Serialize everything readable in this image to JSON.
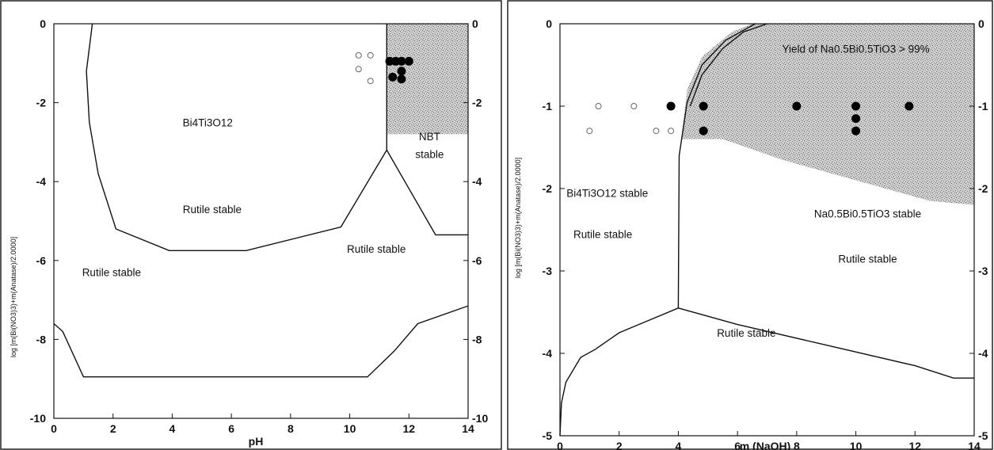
{
  "chart_data": [
    {
      "type": "line",
      "subtype": "phase-stability-diagram",
      "title": "",
      "xlabel": "pH",
      "ylabel": "log [m(Bi(NO3)3)+m(Anatase)/2.0000]",
      "xlim": [
        0,
        14
      ],
      "ylim": [
        -10,
        0
      ],
      "x_ticks": [
        0,
        2,
        4,
        6,
        8,
        10,
        12,
        14
      ],
      "y_ticks_left": [
        0,
        -2,
        -4,
        -6,
        -8,
        -10
      ],
      "y_ticks_right": [
        0,
        -2,
        -4,
        -6,
        -8,
        -10
      ],
      "grid": false,
      "shaded_regions": [
        {
          "polygon": [
            [
              11.25,
              0
            ],
            [
              14,
              0
            ],
            [
              14,
              -2.8
            ],
            [
              11.25,
              -2.8
            ]
          ]
        }
      ],
      "boundaries": [
        {
          "points": [
            [
              1.3,
              0
            ],
            [
              1.1,
              -1.2
            ],
            [
              1.2,
              -2.5
            ],
            [
              1.5,
              -3.8
            ],
            [
              2.1,
              -5.2
            ]
          ]
        },
        {
          "points": [
            [
              2.1,
              -5.2
            ],
            [
              3.9,
              -5.75
            ],
            [
              6.5,
              -5.75
            ],
            [
              9.7,
              -5.15
            ],
            [
              11.25,
              -3.2
            ]
          ]
        },
        {
          "points": [
            [
              11.25,
              0
            ],
            [
              11.25,
              -3.2
            ]
          ]
        },
        {
          "points": [
            [
              11.25,
              -3.2
            ],
            [
              12.9,
              -5.35
            ],
            [
              14,
              -5.35
            ]
          ]
        },
        {
          "points": [
            [
              0,
              -7.6
            ],
            [
              0.3,
              -7.8
            ],
            [
              1,
              -8.95
            ],
            [
              10.6,
              -8.95
            ],
            [
              11.5,
              -8.3
            ],
            [
              12.3,
              -7.6
            ],
            [
              14,
              -7.15
            ]
          ]
        }
      ],
      "data_points": [
        {
          "x": 11.35,
          "y": -0.95,
          "filled": true
        },
        {
          "x": 11.55,
          "y": -0.95,
          "filled": true
        },
        {
          "x": 11.75,
          "y": -0.95,
          "filled": true
        },
        {
          "x": 12.0,
          "y": -0.95,
          "filled": true
        },
        {
          "x": 11.45,
          "y": -1.35,
          "filled": true
        },
        {
          "x": 11.75,
          "y": -1.2,
          "filled": true
        },
        {
          "x": 11.75,
          "y": -1.4,
          "filled": true
        },
        {
          "x": 10.3,
          "y": -0.8,
          "filled": false
        },
        {
          "x": 10.7,
          "y": -0.8,
          "filled": false
        },
        {
          "x": 10.3,
          "y": -1.15,
          "filled": false
        },
        {
          "x": 10.7,
          "y": -1.45,
          "filled": false
        }
      ],
      "annotations": [
        {
          "text": "Bi4Ti3O12",
          "x": 5.2,
          "y": -2.6
        },
        {
          "text": "NBT",
          "x": 12.7,
          "y": -2.95
        },
        {
          "text": "stable",
          "x": 12.7,
          "y": -3.4
        },
        {
          "text": "Rutile stable",
          "x": 5.35,
          "y": -4.8
        },
        {
          "text": "Rutile stable",
          "x": 10.9,
          "y": -5.8
        },
        {
          "text": "Rutile stable",
          "x": 1.95,
          "y": -6.4
        }
      ]
    },
    {
      "type": "line",
      "subtype": "phase-stability-diagram",
      "title": "",
      "xlabel": "m (NaOH)",
      "ylabel": "log [m(Bi(NO3)3)+m(Anatase)/2.0000]",
      "xlim": [
        0,
        14
      ],
      "ylim": [
        -5,
        0
      ],
      "x_ticks": [
        0,
        2,
        4,
        6,
        8,
        10,
        12,
        14
      ],
      "y_ticks_left": [
        0,
        -1,
        -2,
        -3,
        -4,
        -5
      ],
      "y_ticks_right": [
        0,
        -1,
        -2,
        -3,
        -4,
        -5
      ],
      "grid": false,
      "shaded_regions": [
        {
          "polygon": [
            [
              4.1,
              -1.4
            ],
            [
              4.3,
              -0.8
            ],
            [
              4.8,
              -0.4
            ],
            [
              5.8,
              -0.1
            ],
            [
              6.5,
              0
            ],
            [
              14,
              0
            ],
            [
              14,
              -2.2
            ],
            [
              12.5,
              -2.15
            ],
            [
              9.5,
              -1.85
            ],
            [
              7.5,
              -1.65
            ],
            [
              5.5,
              -1.4
            ],
            [
              4.1,
              -1.4
            ]
          ]
        }
      ],
      "boundaries": [
        {
          "points": [
            [
              4.0,
              -3.45
            ],
            [
              4.03,
              -1.6
            ],
            [
              4.3,
              -0.95
            ],
            [
              4.8,
              -0.5
            ],
            [
              5.6,
              -0.2
            ],
            [
              6.6,
              0
            ]
          ]
        },
        {
          "points": [
            [
              4.4,
              -1.0
            ],
            [
              4.8,
              -0.62
            ],
            [
              5.5,
              -0.3
            ],
            [
              6.2,
              -0.1
            ],
            [
              7.0,
              0
            ]
          ]
        },
        {
          "points": [
            [
              0,
              -5
            ],
            [
              0.05,
              -4.6
            ],
            [
              0.2,
              -4.35
            ],
            [
              0.7,
              -4.05
            ],
            [
              1.2,
              -3.95
            ],
            [
              2.0,
              -3.75
            ],
            [
              3.0,
              -3.6
            ],
            [
              4.0,
              -3.45
            ]
          ]
        },
        {
          "points": [
            [
              4.0,
              -3.45
            ],
            [
              6.0,
              -3.65
            ],
            [
              9.0,
              -3.9
            ],
            [
              12.0,
              -4.15
            ],
            [
              13.3,
              -4.3
            ],
            [
              14,
              -4.3
            ]
          ]
        }
      ],
      "data_points": [
        {
          "x": 1.3,
          "y": -1.0,
          "filled": false
        },
        {
          "x": 2.5,
          "y": -1.0,
          "filled": false
        },
        {
          "x": 1.0,
          "y": -1.3,
          "filled": false
        },
        {
          "x": 3.25,
          "y": -1.3,
          "filled": false
        },
        {
          "x": 3.75,
          "y": -1.3,
          "filled": false
        },
        {
          "x": 3.75,
          "y": -1.0,
          "filled": true
        },
        {
          "x": 4.85,
          "y": -1.0,
          "filled": true
        },
        {
          "x": 4.85,
          "y": -1.3,
          "filled": true
        },
        {
          "x": 8.0,
          "y": -1.0,
          "filled": true
        },
        {
          "x": 10.0,
          "y": -1.0,
          "filled": true
        },
        {
          "x": 10.0,
          "y": -1.15,
          "filled": true
        },
        {
          "x": 10.0,
          "y": -1.3,
          "filled": true
        },
        {
          "x": 11.8,
          "y": -1.0,
          "filled": true
        }
      ],
      "annotations": [
        {
          "text": "Yield of Na0.5Bi0.5TiO3 > 99%",
          "x": 10.0,
          "y": -0.35
        },
        {
          "text": "Bi4Ti3O12 stable",
          "x": 1.6,
          "y": -2.1
        },
        {
          "text": "Rutile stable",
          "x": 1.45,
          "y": -2.6
        },
        {
          "text": "Na0.5Bi0.5TiO3 stable",
          "x": 10.4,
          "y": -2.35
        },
        {
          "text": "Rutile stable",
          "x": 10.4,
          "y": -2.9
        },
        {
          "text": "Rutile stable",
          "x": 6.3,
          "y": -3.8
        }
      ]
    }
  ]
}
